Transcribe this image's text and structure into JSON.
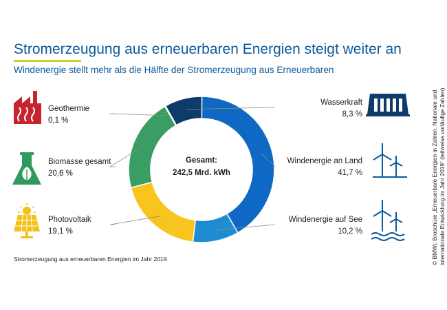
{
  "header": {
    "title": "Stromerzeugung aus erneuerbaren Energien steigt weiter an",
    "subtitle": "Windenergie stellt mehr als die Hälfte der Stromerzeugung aus Erneuerbaren"
  },
  "footnote": "Stromerzeugung aus erneuerbaren Energien im Jahr 2019",
  "source": {
    "line1": "© BMWi; Broschüre „Erneuerbare Energien in Zahlen. Nationale und",
    "line2": "internationale Entwicklung im Jahr 2019“ (teilweise vorläufige Zahlen)"
  },
  "colors": {
    "title": "#0a5a9c",
    "accent_rule": "#c8d42a",
    "icon_geothermie": "#c8242f",
    "icon_biomasse": "#2f9a5e",
    "icon_photovoltaik": "#f2c11a",
    "icon_wind": "#0a5a9c",
    "icon_wasser": "#0d3c6b"
  },
  "icons": {
    "geothermie": "factory-heat-icon",
    "biomasse": "flask-leaf-icon",
    "photovoltaik": "solar-panel-icon",
    "wasserkraft": "dam-icon",
    "wind_land": "wind-turbine-icon",
    "wind_see": "offshore-wind-turbine-icon"
  },
  "chart_data": {
    "type": "pie",
    "donut": true,
    "title": "Stromerzeugung aus erneuerbaren Energien im Jahr 2019",
    "center_label": "Gesamt:",
    "center_value": "242,5 Mrd. kWh",
    "total": 242.5,
    "unit": "Mrd. kWh",
    "start": "top, clockwise",
    "slices": [
      {
        "name": "Windenergie an Land",
        "value": 41.7,
        "label": "41,7 %",
        "color": "#0f68c3"
      },
      {
        "name": "Windenergie auf See",
        "value": 10.2,
        "label": "10,2 %",
        "color": "#1f8cd1"
      },
      {
        "name": "Photovoltaik",
        "value": 19.1,
        "label": "19,1 %",
        "color": "#f7c51e"
      },
      {
        "name": "Biomasse gesamt",
        "value": 20.6,
        "label": "20,6 %",
        "color": "#3a9d63"
      },
      {
        "name": "Geothermie",
        "value": 0.1,
        "label": "0,1 %",
        "color": "#d0263a"
      },
      {
        "name": "Wasserkraft",
        "value": 8.3,
        "label": "8,3 %",
        "color": "#0d3c6b"
      }
    ]
  }
}
